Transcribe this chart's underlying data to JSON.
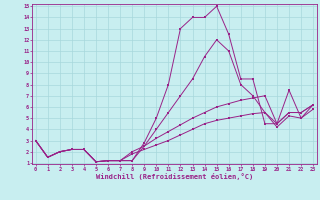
{
  "xlabel": "Windchill (Refroidissement éolien,°C)",
  "background_color": "#c8eef0",
  "grid_color": "#a8d8dc",
  "line_color": "#992288",
  "x_values": [
    0,
    1,
    2,
    3,
    4,
    5,
    6,
    7,
    8,
    9,
    10,
    11,
    12,
    13,
    14,
    15,
    16,
    17,
    18,
    19,
    20,
    21,
    22,
    23
  ],
  "series": [
    [
      3.0,
      1.5,
      2.0,
      2.2,
      2.2,
      1.1,
      1.2,
      1.2,
      1.2,
      2.8,
      5.0,
      8.0,
      13.0,
      14.0,
      14.0,
      15.0,
      12.5,
      8.5,
      8.5,
      4.5,
      4.5,
      7.5,
      5.0,
      6.2
    ],
    [
      3.0,
      1.5,
      2.0,
      2.2,
      2.2,
      1.1,
      1.2,
      1.2,
      1.2,
      2.5,
      4.0,
      5.5,
      7.0,
      8.5,
      10.5,
      12.0,
      11.0,
      8.0,
      7.0,
      5.5,
      4.5,
      5.5,
      5.5,
      6.2
    ],
    [
      3.0,
      1.5,
      2.0,
      2.2,
      2.2,
      1.1,
      1.2,
      1.2,
      2.0,
      2.5,
      3.2,
      3.8,
      4.4,
      5.0,
      5.5,
      6.0,
      6.3,
      6.6,
      6.8,
      7.0,
      4.5,
      5.5,
      5.5,
      6.2
    ],
    [
      3.0,
      1.5,
      2.0,
      2.2,
      2.2,
      1.1,
      1.2,
      1.2,
      1.8,
      2.2,
      2.6,
      3.0,
      3.5,
      4.0,
      4.5,
      4.8,
      5.0,
      5.2,
      5.4,
      5.5,
      4.2,
      5.2,
      5.0,
      5.8
    ]
  ],
  "ylim_min": 1,
  "ylim_max": 15,
  "xlim_min": 0,
  "xlim_max": 23,
  "yticks": [
    1,
    2,
    3,
    4,
    5,
    6,
    7,
    8,
    9,
    10,
    11,
    12,
    13,
    14,
    15
  ],
  "xticks": [
    0,
    1,
    2,
    3,
    4,
    5,
    6,
    7,
    8,
    9,
    10,
    11,
    12,
    13,
    14,
    15,
    16,
    17,
    18,
    19,
    20,
    21,
    22,
    23
  ]
}
